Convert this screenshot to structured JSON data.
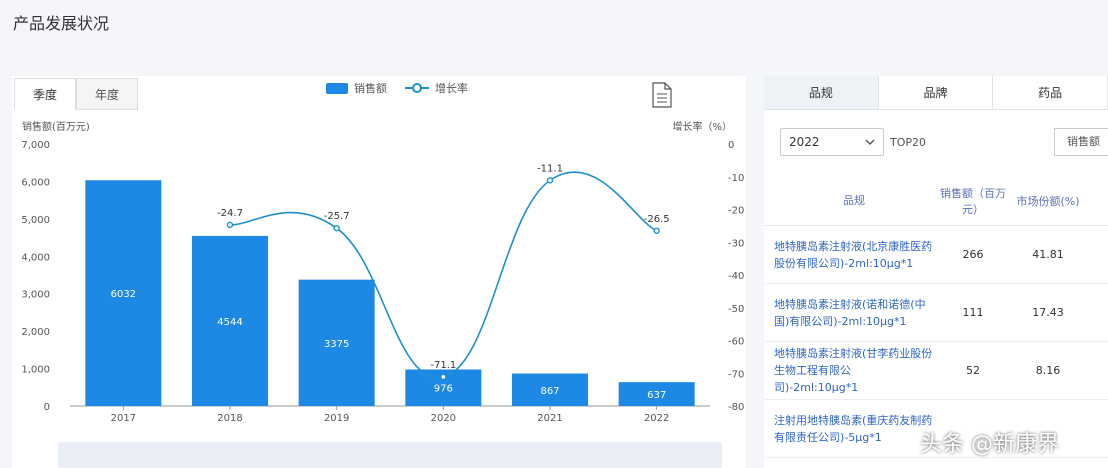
{
  "page": {
    "title": "产品发展状况"
  },
  "left_panel": {
    "tabs": [
      {
        "label": "季度",
        "active": true
      },
      {
        "label": "年度",
        "active": false
      }
    ],
    "legend": {
      "bar_label": "销售额",
      "line_label": "增长率"
    },
    "icons": {
      "export": "document-icon"
    }
  },
  "chart_data": {
    "type": "bar",
    "categories": [
      "2017",
      "2018",
      "2019",
      "2020",
      "2021",
      "2022"
    ],
    "series": [
      {
        "name": "销售额",
        "type": "bar",
        "axis": "left",
        "values": [
          6032,
          4544,
          3375,
          976,
          867,
          637
        ],
        "labels": [
          "6032",
          "4544",
          "3375",
          "976",
          "867",
          "637"
        ]
      },
      {
        "name": "增长率",
        "type": "line",
        "axis": "right",
        "values": [
          null,
          -24.7,
          -25.7,
          -71.1,
          -11.1,
          -26.5
        ],
        "labels": [
          "",
          "-24.7",
          "-25.7",
          "-71.1",
          "-11.1",
          "-26.5"
        ]
      }
    ],
    "ylabel_left": "销售额(百万元)",
    "ylabel_right": "增长率（%）",
    "ylim_left": [
      0,
      7000
    ],
    "ylim_right": [
      -80,
      0
    ],
    "yticks_left": [
      "7,000",
      "6,000",
      "5,000",
      "4,000",
      "3,000",
      "2,000",
      "1,000",
      "0"
    ],
    "yticks_right": [
      "0",
      "-10",
      "-20",
      "-30",
      "-40",
      "-50",
      "-60",
      "-70",
      "-80"
    ],
    "colors": {
      "bar": "#1e88e5",
      "line": "#1e90d0"
    }
  },
  "right_panel": {
    "tabs": [
      {
        "label": "品规",
        "active": true
      },
      {
        "label": "品牌",
        "active": false
      },
      {
        "label": "药品",
        "active": false
      }
    ],
    "year_select": {
      "value": "2022",
      "icon": "chevron-down-icon"
    },
    "top_label": "TOP20",
    "sort_label": "销售额",
    "table": {
      "headers": [
        "品规",
        "销售额（百万元）",
        "市场份额(%)"
      ],
      "rows": [
        {
          "product": "地特胰岛素注射液(北京康胜医药股份有限公司)-2ml:10μg*1",
          "sales": "266",
          "share": "41.81"
        },
        {
          "product": "地特胰岛素注射液(诺和诺德(中国)有限公司)-2ml:10μg*1",
          "sales": "111",
          "share": "17.43"
        },
        {
          "product": "地特胰岛素注射液(甘李药业股份生物工程有限公司)-2ml:10μg*1",
          "sales": "52",
          "share": "8.16"
        },
        {
          "product": "注射用地特胰岛素(重庆药友制药有限责任公司)-5μg*1",
          "sales": "",
          "share": ""
        }
      ]
    }
  },
  "watermark": "头条 @新康界"
}
